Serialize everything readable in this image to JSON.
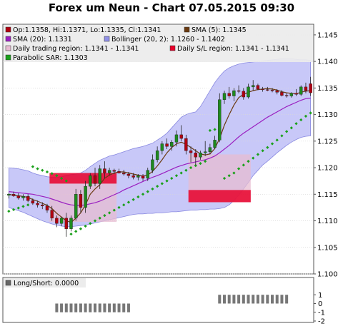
{
  "title": "Forex um Neun - Chart 07.05.2015 09:30",
  "colors": {
    "bollinger_band": "#c8c8f8",
    "sma5": "#6b3a10",
    "sma20": "#9a1fc0",
    "sar": "#1aa01a",
    "trading_region": "#e7bcd2",
    "sl_region": "#e8002a",
    "candle_up": "#1e8a1e",
    "candle_down": "#b00010",
    "lower_bars": "#777777"
  },
  "legend": [
    {
      "text": "Op:1.1358, Hi:1.1371, Lo:1.1335, Cl:1.1341",
      "swatch": "#b00010"
    },
    {
      "text": "SMA (5): 1.1345",
      "swatch": "#6b3a10"
    },
    {
      "text": "SMA (20): 1.1331",
      "swatch": "#9a1fc0"
    },
    {
      "text": "Bollinger (20, 2): 1.1260 - 1.1402",
      "swatch": "#9090e8"
    },
    {
      "text": "Daily trading region: 1.1341 - 1.1341",
      "swatch": "#e7bcd2"
    },
    {
      "text": "Daily S/L region: 1.1341 - 1.1341",
      "swatch": "#e8002a"
    },
    {
      "text": "Parabolic SAR: 1.1303",
      "swatch": "#1aa01a"
    }
  ],
  "lower_panel": {
    "label": "Long/Short: 0.0000"
  },
  "chart_data": {
    "type": "candlestick",
    "title": "Forex um Neun - Chart 07.05.2015 09:30",
    "ylim": [
      1.1,
      1.147
    ],
    "yticks": [
      "1.100",
      "1.105",
      "1.110",
      "1.115",
      "1.120",
      "1.125",
      "1.130",
      "1.135",
      "1.140",
      "1.145"
    ],
    "ohlc": [
      [
        1.1148,
        1.1153,
        1.1142,
        1.115
      ],
      [
        1.115,
        1.1155,
        1.1145,
        1.1147
      ],
      [
        1.1147,
        1.1152,
        1.114,
        1.1143
      ],
      [
        1.1143,
        1.115,
        1.1138,
        1.1146
      ],
      [
        1.1146,
        1.115,
        1.1135,
        1.1138
      ],
      [
        1.1138,
        1.1142,
        1.113,
        1.1133
      ],
      [
        1.1133,
        1.1138,
        1.1125,
        1.113
      ],
      [
        1.113,
        1.1135,
        1.1122,
        1.1128
      ],
      [
        1.1128,
        1.1132,
        1.1115,
        1.112
      ],
      [
        1.112,
        1.1128,
        1.11,
        1.1105
      ],
      [
        1.1105,
        1.111,
        1.1088,
        1.1095
      ],
      [
        1.1095,
        1.1108,
        1.109,
        1.1105
      ],
      [
        1.1105,
        1.1115,
        1.107,
        1.1085
      ],
      [
        1.1085,
        1.111,
        1.108,
        1.1105
      ],
      [
        1.1105,
        1.116,
        1.11,
        1.115
      ],
      [
        1.115,
        1.1158,
        1.1115,
        1.1125
      ],
      [
        1.1125,
        1.1175,
        1.1115,
        1.1165
      ],
      [
        1.1165,
        1.119,
        1.116,
        1.1185
      ],
      [
        1.1185,
        1.12,
        1.1165,
        1.117
      ],
      [
        1.117,
        1.1205,
        1.116,
        1.1198
      ],
      [
        1.1198,
        1.1212,
        1.118,
        1.119
      ],
      [
        1.119,
        1.12,
        1.1185,
        1.1195
      ],
      [
        1.1195,
        1.1198,
        1.1188,
        1.1193
      ],
      [
        1.1193,
        1.1198,
        1.1189,
        1.119
      ],
      [
        1.119,
        1.1196,
        1.1185,
        1.1188
      ],
      [
        1.1188,
        1.1192,
        1.118,
        1.1185
      ],
      [
        1.1185,
        1.119,
        1.1178,
        1.1182
      ],
      [
        1.1182,
        1.1188,
        1.1176,
        1.1185
      ],
      [
        1.1185,
        1.1188,
        1.1175,
        1.118
      ],
      [
        1.118,
        1.12,
        1.1175,
        1.1195
      ],
      [
        1.1195,
        1.1225,
        1.119,
        1.1215
      ],
      [
        1.1215,
        1.124,
        1.121,
        1.1232
      ],
      [
        1.1232,
        1.125,
        1.1225,
        1.1245
      ],
      [
        1.1245,
        1.1255,
        1.1235,
        1.124
      ],
      [
        1.124,
        1.1252,
        1.1232,
        1.1248
      ],
      [
        1.1248,
        1.127,
        1.124,
        1.1262
      ],
      [
        1.1262,
        1.128,
        1.125,
        1.1255
      ],
      [
        1.1255,
        1.1262,
        1.1225,
        1.1232
      ],
      [
        1.1232,
        1.124,
        1.121,
        1.1228
      ],
      [
        1.1228,
        1.1235,
        1.1205,
        1.122
      ],
      [
        1.122,
        1.1232,
        1.1215,
        1.1228
      ],
      [
        1.1228,
        1.125,
        1.1222,
        1.123
      ],
      [
        1.123,
        1.1245,
        1.1225,
        1.1238
      ],
      [
        1.1238,
        1.126,
        1.1235,
        1.1252
      ],
      [
        1.1252,
        1.134,
        1.1248,
        1.1328
      ],
      [
        1.1328,
        1.1345,
        1.132,
        1.134
      ],
      [
        1.134,
        1.1352,
        1.133,
        1.1335
      ],
      [
        1.1335,
        1.135,
        1.1325,
        1.1345
      ],
      [
        1.1345,
        1.1355,
        1.134,
        1.1344
      ],
      [
        1.1344,
        1.135,
        1.1328,
        1.1333
      ],
      [
        1.1333,
        1.1358,
        1.133,
        1.1352
      ],
      [
        1.1352,
        1.1365,
        1.1345,
        1.1355
      ],
      [
        1.1355,
        1.1358,
        1.1346,
        1.1348
      ],
      [
        1.1348,
        1.1352,
        1.1343,
        1.1347
      ],
      [
        1.1347,
        1.1352,
        1.1344,
        1.1346
      ],
      [
        1.1346,
        1.135,
        1.1342,
        1.1345
      ],
      [
        1.1345,
        1.1348,
        1.1338,
        1.1342
      ],
      [
        1.1342,
        1.1346,
        1.1334,
        1.1336
      ],
      [
        1.1336,
        1.134,
        1.1332,
        1.1335
      ],
      [
        1.1335,
        1.1342,
        1.1332,
        1.134
      ],
      [
        1.134,
        1.1348,
        1.1335,
        1.1338
      ],
      [
        1.1338,
        1.1355,
        1.1335,
        1.1352
      ],
      [
        1.1352,
        1.136,
        1.134,
        1.1345
      ],
      [
        1.1358,
        1.1371,
        1.1335,
        1.1341
      ]
    ],
    "sma5": [
      1.115,
      1.1148,
      1.1147,
      1.1146,
      1.1144,
      1.114,
      1.1137,
      1.1133,
      1.1129,
      1.1123,
      1.1114,
      1.1107,
      1.11,
      1.1097,
      1.1105,
      1.1115,
      1.113,
      1.115,
      1.116,
      1.1168,
      1.118,
      1.1186,
      1.119,
      1.1192,
      1.1192,
      1.119,
      1.1188,
      1.1186,
      1.1184,
      1.1186,
      1.1193,
      1.1203,
      1.1215,
      1.1228,
      1.1238,
      1.1245,
      1.1248,
      1.1244,
      1.1238,
      1.1232,
      1.1226,
      1.1224,
      1.1226,
      1.1236,
      1.1255,
      1.128,
      1.13,
      1.1318,
      1.1332,
      1.1338,
      1.1342,
      1.1345,
      1.1347,
      1.1348,
      1.1349,
      1.1348,
      1.1346,
      1.1343,
      1.1341,
      1.134,
      1.1339,
      1.1342,
      1.1344,
      1.1345
    ],
    "sma20": [
      1.1155,
      1.1154,
      1.1153,
      1.1152,
      1.1151,
      1.115,
      1.1148,
      1.1146,
      1.1144,
      1.1141,
      1.1138,
      1.1135,
      1.1132,
      1.113,
      1.1129,
      1.1129,
      1.113,
      1.1132,
      1.1134,
      1.1137,
      1.1141,
      1.1145,
      1.1149,
      1.1153,
      1.1158,
      1.1162,
      1.1166,
      1.117,
      1.1174,
      1.1178,
      1.1182,
      1.1185,
      1.1189,
      1.1193,
      1.1197,
      1.1201,
      1.1204,
      1.1207,
      1.1209,
      1.1211,
      1.1213,
      1.1215,
      1.1218,
      1.1222,
      1.1228,
      1.1235,
      1.1242,
      1.125,
      1.1258,
      1.1265,
      1.1271,
      1.1277,
      1.1283,
      1.1289,
      1.1295,
      1.13,
      1.1305,
      1.131,
      1.1315,
      1.1319,
      1.1323,
      1.1327,
      1.133,
      1.1331
    ],
    "bb_upper": [
      1.12,
      1.1199,
      1.1198,
      1.1196,
      1.1194,
      1.119,
      1.1187,
      1.1185,
      1.1183,
      1.1182,
      1.1182,
      1.1183,
      1.1185,
      1.1187,
      1.1188,
      1.119,
      1.1195,
      1.1202,
      1.1208,
      1.1214,
      1.1218,
      1.1222,
      1.1224,
      1.1227,
      1.123,
      1.1233,
      1.1236,
      1.1238,
      1.124,
      1.1243,
      1.1246,
      1.1252,
      1.1258,
      1.1265,
      1.1275,
      1.1285,
      1.1295,
      1.13,
      1.1303,
      1.1305,
      1.1315,
      1.133,
      1.1345,
      1.136,
      1.1372,
      1.1382,
      1.1388,
      1.1392,
      1.1395,
      1.1397,
      1.1398,
      1.1399,
      1.14,
      1.1401,
      1.1402,
      1.1403,
      1.1404,
      1.1405,
      1.1405,
      1.1405,
      1.1404,
      1.1403,
      1.1403,
      1.1402
    ],
    "bb_lower": [
      1.1125,
      1.1122,
      1.1119,
      1.1116,
      1.1112,
      1.1108,
      1.1104,
      1.11,
      1.1097,
      1.1094,
      1.1092,
      1.109,
      1.1089,
      1.1089,
      1.109,
      1.1091,
      1.1092,
      1.1094,
      1.1096,
      1.1098,
      1.11,
      1.1102,
      1.1104,
      1.1106,
      1.1108,
      1.111,
      1.1112,
      1.1113,
      1.1113,
      1.1114,
      1.1114,
      1.1115,
      1.1115,
      1.1116,
      1.1117,
      1.1117,
      1.1118,
      1.1119,
      1.112,
      1.112,
      1.1121,
      1.1121,
      1.1122,
      1.1122,
      1.1123,
      1.1125,
      1.113,
      1.1138,
      1.1148,
      1.116,
      1.1172,
      1.1185,
      1.1195,
      1.1205,
      1.1212,
      1.122,
      1.1228,
      1.1235,
      1.1242,
      1.1248,
      1.1253,
      1.1257,
      1.1259,
      1.126
    ],
    "sar": [
      1.1118,
      1.1121,
      1.1124,
      1.1127,
      1.113,
      1.1202,
      1.1198,
      1.1195,
      1.1192,
      1.1189,
      1.1185,
      1.118,
      1.1175,
      1.1075,
      1.108,
      1.1085,
      1.109,
      1.1095,
      1.11,
      1.1105,
      1.111,
      1.1115,
      1.112,
      1.1125,
      1.113,
      1.1135,
      1.114,
      1.1145,
      1.115,
      1.1155,
      1.116,
      1.1165,
      1.117,
      1.1175,
      1.118,
      1.1185,
      1.119,
      1.1195,
      1.12,
      1.1204,
      1.1208,
      1.1212,
      1.127,
      1.1272,
      1.1275,
      1.118,
      1.1185,
      1.119,
      1.1198,
      1.1205,
      1.1212,
      1.1218,
      1.1225,
      1.1232,
      1.1238,
      1.1245,
      1.1252,
      1.126,
      1.1268,
      1.1275,
      1.1283,
      1.129,
      1.1297,
      1.1303
    ],
    "trading_regions": [
      {
        "start": 9,
        "end": 22,
        "low": 1.1098,
        "high": 1.118
      },
      {
        "start": 38,
        "end": 50,
        "low": 1.1135,
        "high": 1.1225
      }
    ],
    "sl_regions": [
      {
        "start": 9,
        "end": 22,
        "low": 1.117,
        "high": 1.119
      },
      {
        "start": 38,
        "end": 50,
        "low": 1.1135,
        "high": 1.1158
      }
    ],
    "long_short": {
      "ylim": [
        -2,
        2
      ],
      "yticks": [
        "1",
        "0",
        "-1",
        "-2"
      ],
      "values": [
        0,
        0,
        0,
        0,
        0,
        0,
        0,
        0,
        0,
        0,
        -1,
        -1,
        -1,
        -1,
        -1,
        -1,
        -1,
        -1,
        -1,
        -1,
        -1,
        -1,
        -1,
        -1,
        -1,
        -1,
        0,
        0,
        0,
        0,
        0,
        0,
        0,
        0,
        0,
        0,
        0,
        0,
        0,
        0,
        0,
        0,
        0,
        0,
        1,
        1,
        1,
        1,
        1,
        1,
        1,
        1,
        1,
        1,
        1,
        1,
        1,
        1,
        1,
        0,
        0,
        0,
        0,
        0
      ]
    }
  }
}
